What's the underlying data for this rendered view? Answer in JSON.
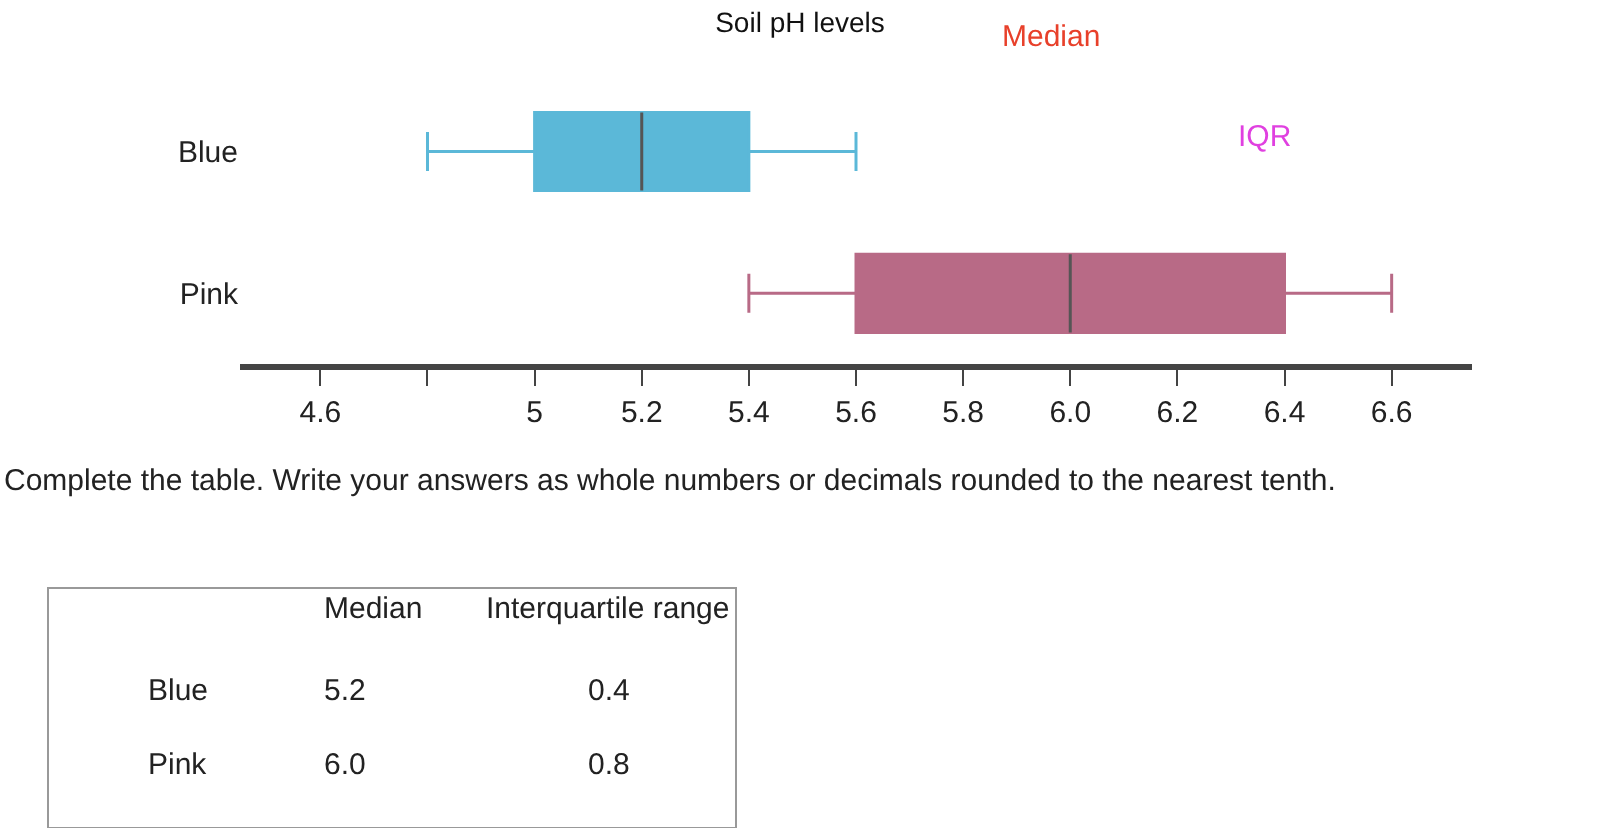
{
  "chart_data": {
    "type": "box",
    "title": "Soil pH levels",
    "orientation": "horizontal",
    "categories": [
      "Blue",
      "Pink"
    ],
    "series": [
      {
        "color": "#5bb8d8",
        "boxes": [
          {
            "low": 4.8,
            "q1": 5.0,
            "median": 5.2,
            "q3": 5.4,
            "high": 5.6
          },
          null
        ]
      },
      {
        "color": "#b86a86",
        "boxes": [
          null,
          {
            "low": 5.4,
            "q1": 5.6,
            "median": 6.0,
            "q3": 6.4,
            "high": 6.6
          }
        ]
      }
    ],
    "xlim": [
      4.45,
      6.75
    ],
    "xticks": [
      4.6,
      {
        "value": 4.8,
        "label": null
      },
      5,
      5.2,
      5.4,
      5.6,
      5.8,
      {
        "value": 6.0,
        "label": "6.0"
      },
      6.2,
      6.4,
      6.6
    ],
    "legend": false,
    "annotations": [
      "Median",
      "IQR",
      "Complete the table. Write your answers as whole numbers or decimals rounded to the nearest tenth.",
      "Median",
      "Interquartile range",
      "Blue",
      "5.2",
      "0.4",
      "Pink",
      "6.0",
      "0.8"
    ]
  }
}
